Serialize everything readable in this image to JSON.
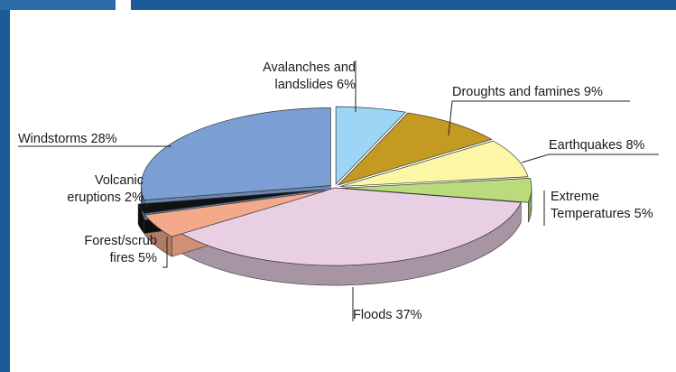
{
  "chart_data": {
    "type": "pie",
    "title": "",
    "style": "3d-exploded",
    "start_angle_deg": -90,
    "direction": "clockwise",
    "slices": [
      {
        "label_lines": [
          "Avalanches and",
          "landslides 6%"
        ],
        "value": 6,
        "color": "#9dd6f4"
      },
      {
        "label_lines": [
          "Droughts and famines 9%"
        ],
        "value": 9,
        "color": "#c49a22"
      },
      {
        "label_lines": [
          "Earthquakes 8%"
        ],
        "value": 8,
        "color": "#fbf7a4"
      },
      {
        "label_lines": [
          "Extreme",
          "Temperatures 5%"
        ],
        "value": 5,
        "color": "#b9db7c"
      },
      {
        "label_lines": [
          "Floods 37%"
        ],
        "value": 37,
        "color": "#e8cfe4"
      },
      {
        "label_lines": [
          "Forest/scrub",
          "fires 5%"
        ],
        "value": 5,
        "color": "#f4a98a"
      },
      {
        "label_lines": [
          "Volcanic",
          "eruptions 2%"
        ],
        "value": 2,
        "color": "#111111"
      },
      {
        "label_lines": [
          "Windstorms 28%"
        ],
        "value": 28,
        "color": "#7b9fd4"
      }
    ]
  }
}
